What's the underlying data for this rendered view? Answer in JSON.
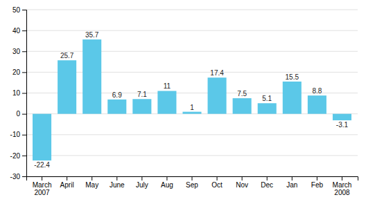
{
  "chart_data": {
    "type": "bar",
    "categories": [
      "March\n2007",
      "April",
      "May",
      "June",
      "July",
      "Aug",
      "Sep",
      "Oct",
      "Nov",
      "Dec",
      "Jan",
      "Feb",
      "March\n2008"
    ],
    "values": [
      -22.4,
      25.7,
      35.7,
      6.9,
      7.1,
      11,
      1,
      17.4,
      7.5,
      5.1,
      15.5,
      8.8,
      -3.1
    ],
    "color": "#5BC8E8",
    "ylim": [
      -30,
      50
    ],
    "yticks": [
      -30,
      -20,
      -10,
      0,
      10,
      20,
      30,
      40,
      50
    ],
    "grid": true,
    "data_labels": true
  }
}
